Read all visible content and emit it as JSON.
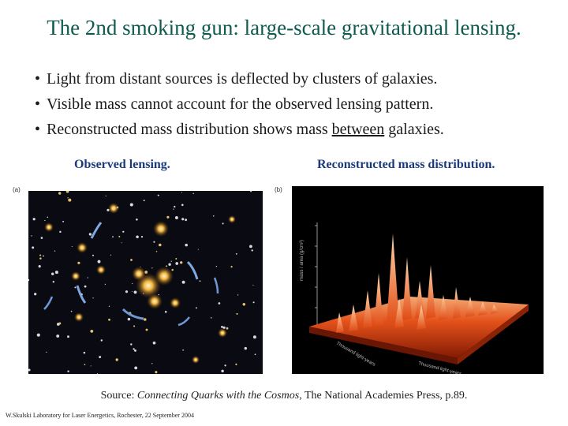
{
  "slide": {
    "title": "The 2nd smoking gun: large-scale gravitational lensing.",
    "bullets": [
      {
        "text": "Light from distant sources is deflected by clusters of galaxies."
      },
      {
        "text": "Visible mass cannot account for the observed lensing pattern."
      },
      {
        "before": "Reconstructed mass distribution shows mass ",
        "underlined": "between",
        "after": " galaxies."
      }
    ],
    "bullet_glyph": "•",
    "left_caption": "Observed lensing.",
    "right_caption": "Reconstructed mass distribution.",
    "left_panel_label": "(a)",
    "right_panel_label": "(b)",
    "source_prefix": "Source: ",
    "source_title": "Connecting Quarks with the Cosmos",
    "source_suffix": ", The National Academies Press, p.89.",
    "footer": "W.Skulski   Laboratory for Laser Energetics,  Rochester, 22 September 2004"
  },
  "plot_labels": {
    "z_axis": "mass / area (g/cm²)",
    "x_axis": "Thousand light-years",
    "y_axis": "Thousand light-years"
  },
  "colors": {
    "title": "#0e5a4f",
    "caption": "#1a3a7a",
    "space_background": "#0a0b12",
    "mass_plot_background": "#000000",
    "mass_surface": "#d83a10"
  }
}
